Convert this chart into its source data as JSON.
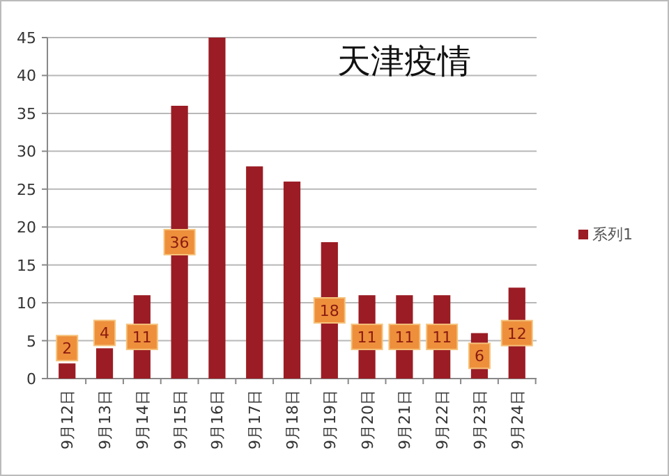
{
  "chart_data": {
    "type": "bar",
    "title": "天津疫情",
    "categories": [
      "9月12日",
      "9月13日",
      "9月14日",
      "9月15日",
      "9月16日",
      "9月17日",
      "9月18日",
      "9月19日",
      "9月20日",
      "9月21日",
      "9月22日",
      "9月23日",
      "9月24日"
    ],
    "series": [
      {
        "name": "系列1",
        "color": "#9b1c24",
        "values": [
          2,
          4,
          11,
          36,
          45,
          28,
          26,
          18,
          11,
          11,
          11,
          6,
          12
        ],
        "value_labels": [
          "2",
          "4",
          "11",
          "36",
          null,
          null,
          null,
          "18",
          "11",
          "11",
          "11",
          "6",
          "12"
        ]
      }
    ],
    "ylim": [
      0,
      45
    ],
    "yticks": [
      0,
      5,
      10,
      15,
      20,
      25,
      30,
      35,
      40,
      45
    ],
    "grid": "y",
    "legend": "right"
  }
}
